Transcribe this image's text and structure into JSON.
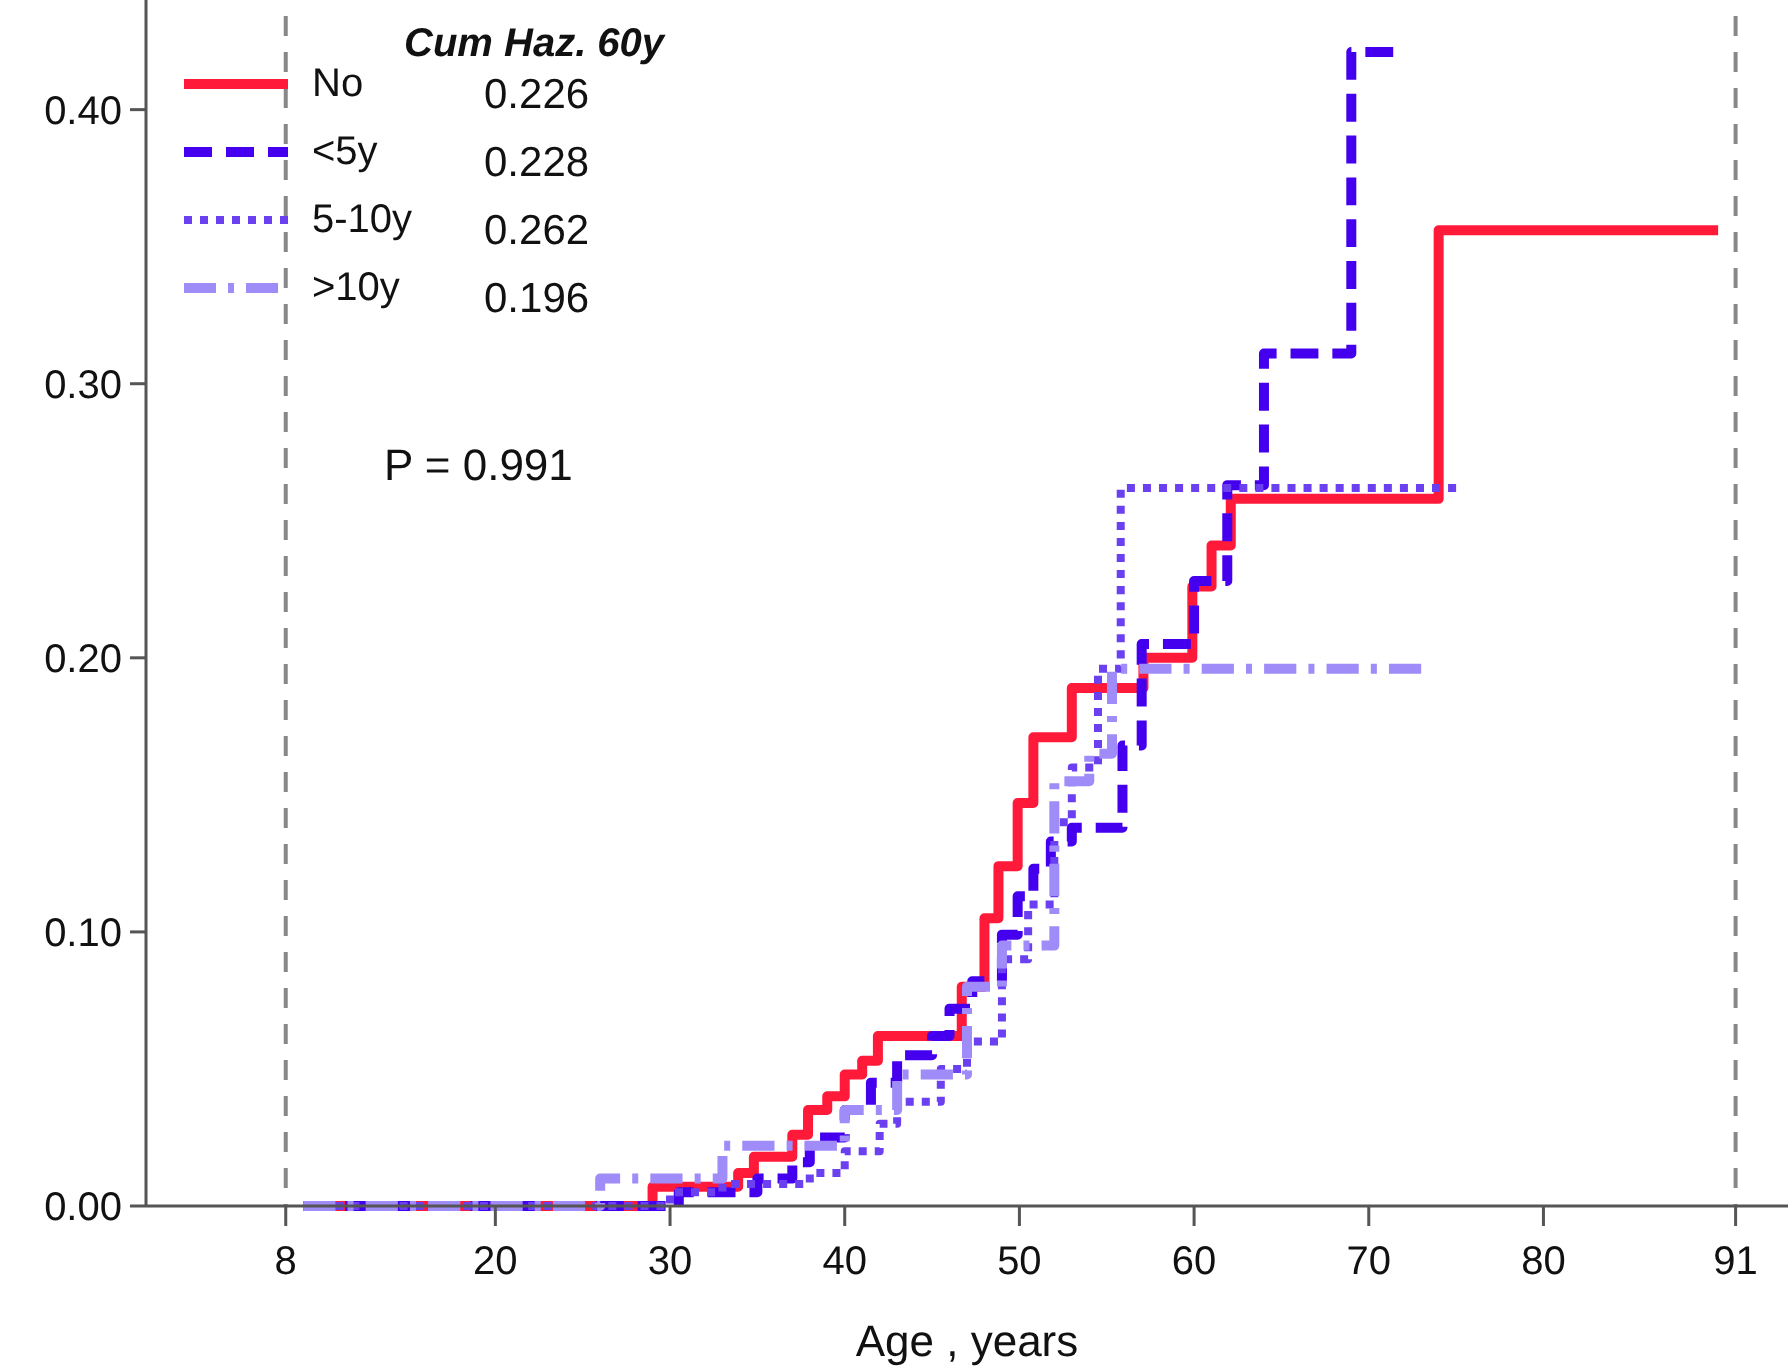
{
  "chart_data": {
    "type": "step",
    "xlabel": "Age , years",
    "legend_title": "Cum Haz. 60y",
    "legend": "top left",
    "grid": false,
    "xlim": [
      0,
      94
    ],
    "xticks": [
      8,
      20,
      30,
      40,
      50,
      60,
      70,
      80,
      91
    ],
    "ylim": [
      0,
      0.44
    ],
    "yticks": [
      {
        "value": 0,
        "label": "0.00"
      },
      {
        "value": 0.1,
        "label": "0.10"
      },
      {
        "value": 0.2,
        "label": "0.20"
      },
      {
        "value": 0.3,
        "label": "0.30"
      },
      {
        "value": 0.4,
        "label": "0.40"
      }
    ],
    "ref_lines": [
      {
        "axis": "x",
        "value": 8,
        "color": "#888888",
        "line_style": "dashed"
      },
      {
        "axis": "x",
        "value": 91,
        "color": "#888888",
        "line_style": "dashed"
      }
    ],
    "annotations": [
      "0.226",
      "0.228",
      "0.262",
      "0.196",
      "P = 0.991"
    ],
    "series": [
      {
        "name": "No",
        "color": "#ff1a3a",
        "line_style": "solid",
        "x": [
          9,
          29,
          33.9,
          34.8,
          37,
          37.9,
          39,
          40,
          41,
          41.9,
          46.7,
          48,
          48.8,
          49.9,
          50.8,
          53,
          57.1,
          59.9,
          61,
          62.1,
          74,
          90
        ],
        "values": [
          0,
          0.007,
          0.012,
          0.018,
          0.026,
          0.035,
          0.04,
          0.048,
          0.053,
          0.062,
          0.08,
          0.105,
          0.124,
          0.147,
          0.171,
          0.189,
          0.2,
          0.226,
          0.241,
          0.258,
          0.356,
          0.356
        ]
      },
      {
        "name": "<5y",
        "color": "#4400ee",
        "line_style": "dashed",
        "x": [
          9,
          30.5,
          35,
          37,
          38,
          40,
          41.5,
          43,
          45,
          46,
          47.3,
          49,
          49.9,
          50.8,
          51.8,
          53,
          55.9,
          57,
          60,
          61.9,
          64,
          69,
          71.4
        ],
        "values": [
          0,
          0.005,
          0.01,
          0.016,
          0.025,
          0.035,
          0.045,
          0.055,
          0.062,
          0.072,
          0.082,
          0.099,
          0.113,
          0.123,
          0.133,
          0.138,
          0.168,
          0.205,
          0.228,
          0.263,
          0.311,
          0.421,
          0.421
        ]
      },
      {
        "name": "5-10y",
        "color": "#6a40f0",
        "line_style": "dotted",
        "x": [
          9,
          30,
          33,
          38,
          40,
          42,
          43,
          45.5,
          47,
          49,
          50.5,
          52,
          53,
          54.5,
          55.8,
          75
        ],
        "values": [
          0,
          0.005,
          0.008,
          0.012,
          0.02,
          0.03,
          0.038,
          0.05,
          0.06,
          0.09,
          0.11,
          0.14,
          0.16,
          0.196,
          0.262,
          0.262
        ]
      },
      {
        "name": ">10y",
        "color": "#a08cf8",
        "line_style": "dashdot",
        "x": [
          9,
          26,
          33,
          40,
          43,
          47,
          49,
          52,
          54,
          55.3,
          73
        ],
        "values": [
          0,
          0.01,
          0.022,
          0.035,
          0.048,
          0.08,
          0.095,
          0.155,
          0.165,
          0.196,
          0.196
        ]
      }
    ]
  }
}
